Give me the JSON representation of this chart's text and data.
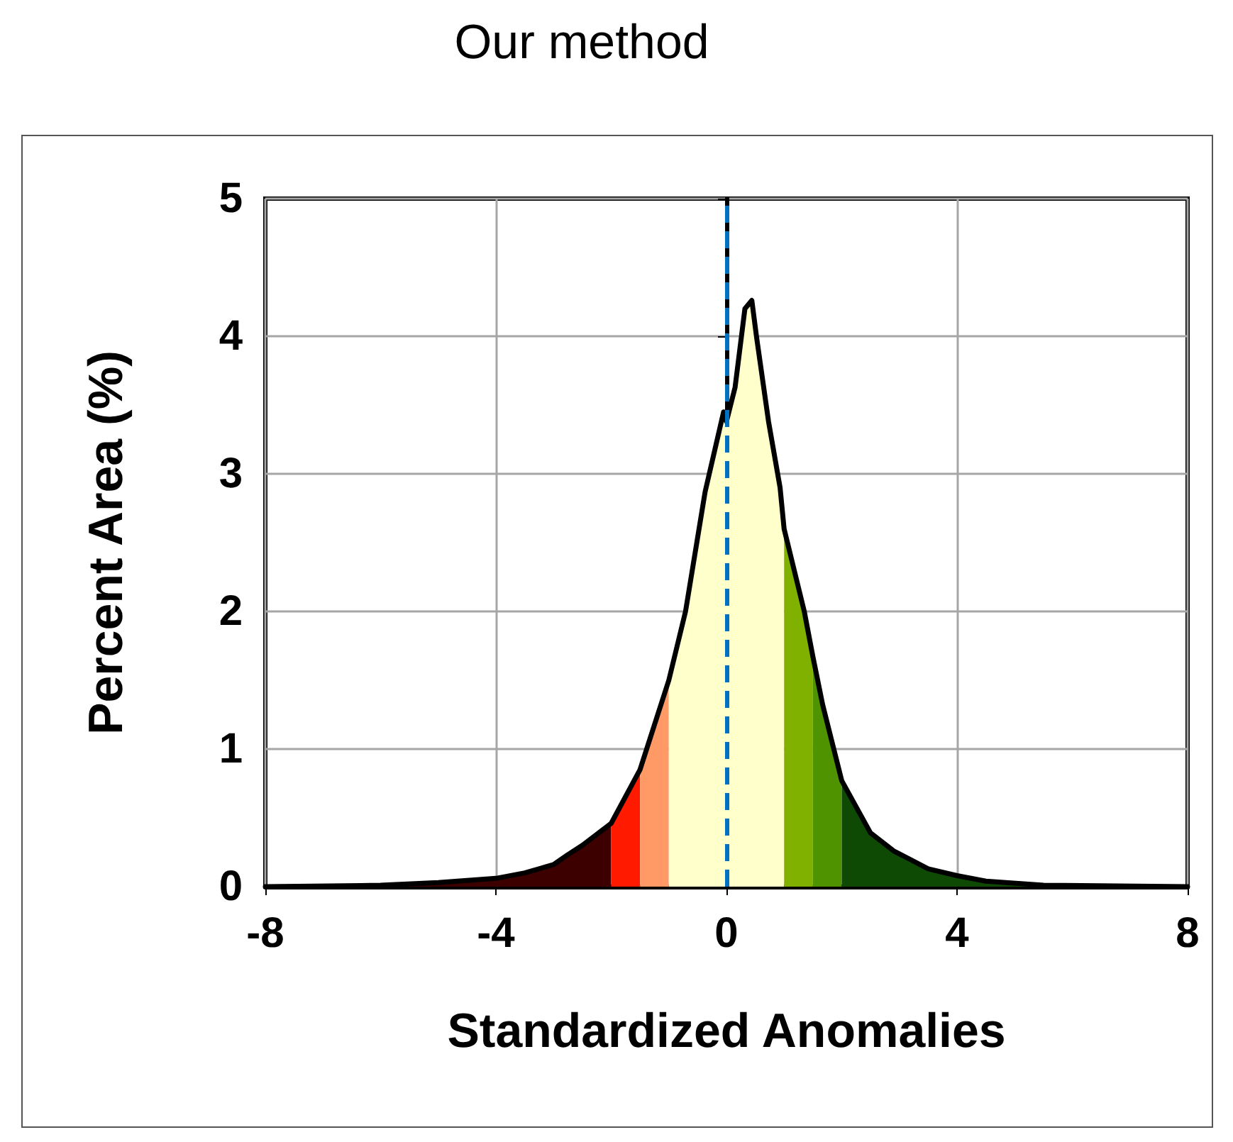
{
  "chart_data": {
    "type": "area",
    "title": "Our method",
    "xlabel": "Standardized Anomalies",
    "ylabel": "Percent Area (%)",
    "xlim": [
      -8,
      8
    ],
    "xticks": [
      -8,
      -4,
      0,
      4,
      8
    ],
    "ylim": [
      0,
      5
    ],
    "yticks": [
      0,
      1,
      2,
      3,
      4,
      5
    ],
    "grid": true,
    "marker": "none",
    "series": [
      {
        "color": "#3d0000",
        "x": [
          -8,
          -6,
          -5,
          -4,
          -3.5,
          -3,
          -2.76,
          -2.5,
          -2
        ],
        "values": [
          0,
          0.01,
          0.03,
          0.06,
          0.1,
          0.16,
          0.23,
          0.3,
          0.46
        ]
      },
      {
        "color": "#ff1a00",
        "x": [
          -2,
          -1.5
        ],
        "values": [
          0.46,
          0.85
        ]
      },
      {
        "color": "#ff9966",
        "x": [
          -1.5,
          -1
        ],
        "values": [
          0.85,
          1.5
        ]
      },
      {
        "color": "#ffffcc",
        "x": [
          -1,
          -0.71,
          -0.37,
          -0.05,
          0,
          0.15,
          0.32,
          0.44,
          0.52,
          0.73,
          0.93,
          1
        ],
        "values": [
          1.5,
          2,
          2.87,
          3.45,
          3.38,
          3.63,
          4.2,
          4.26,
          4,
          3.38,
          2.9,
          2.6
        ]
      },
      {
        "color": "#80b000",
        "x": [
          1,
          1.35,
          1.5
        ],
        "values": [
          2.6,
          2,
          1.67
        ]
      },
      {
        "color": "#4f9400",
        "x": [
          1.5,
          1.67,
          2
        ],
        "values": [
          1.67,
          1.32,
          0.77
        ]
      },
      {
        "color": "#0f4a05",
        "x": [
          2,
          2.5,
          2.9,
          3.5,
          4,
          4.5,
          5.5,
          8
        ],
        "values": [
          0.77,
          0.39,
          0.26,
          0.13,
          0.08,
          0.04,
          0.01,
          0
        ]
      },
      {
        "type": "line",
        "color": "#000000",
        "line_style": "solid",
        "x": [
          -8,
          -6,
          -5,
          -4,
          -3.5,
          -3,
          -2.76,
          -2.5,
          -2,
          -1.5,
          -1,
          -0.71,
          -0.37,
          -0.05,
          0,
          0.15,
          0.32,
          0.44,
          0.52,
          0.73,
          0.93,
          1,
          1.35,
          1.5,
          1.67,
          2,
          2.5,
          2.9,
          3.5,
          4,
          4.5,
          5.5,
          8
        ],
        "values": [
          0,
          0.01,
          0.03,
          0.06,
          0.1,
          0.16,
          0.23,
          0.3,
          0.46,
          0.85,
          1.5,
          2,
          2.87,
          3.45,
          3.38,
          3.63,
          4.2,
          4.26,
          4,
          3.38,
          2.9,
          2.6,
          2,
          1.67,
          1.32,
          0.77,
          0.39,
          0.26,
          0.13,
          0.08,
          0.04,
          0.01,
          0
        ]
      }
    ],
    "ref_lines": [
      {
        "axis": "x",
        "value": 0,
        "color": "#0070c0",
        "line_style": "dashed"
      }
    ]
  }
}
